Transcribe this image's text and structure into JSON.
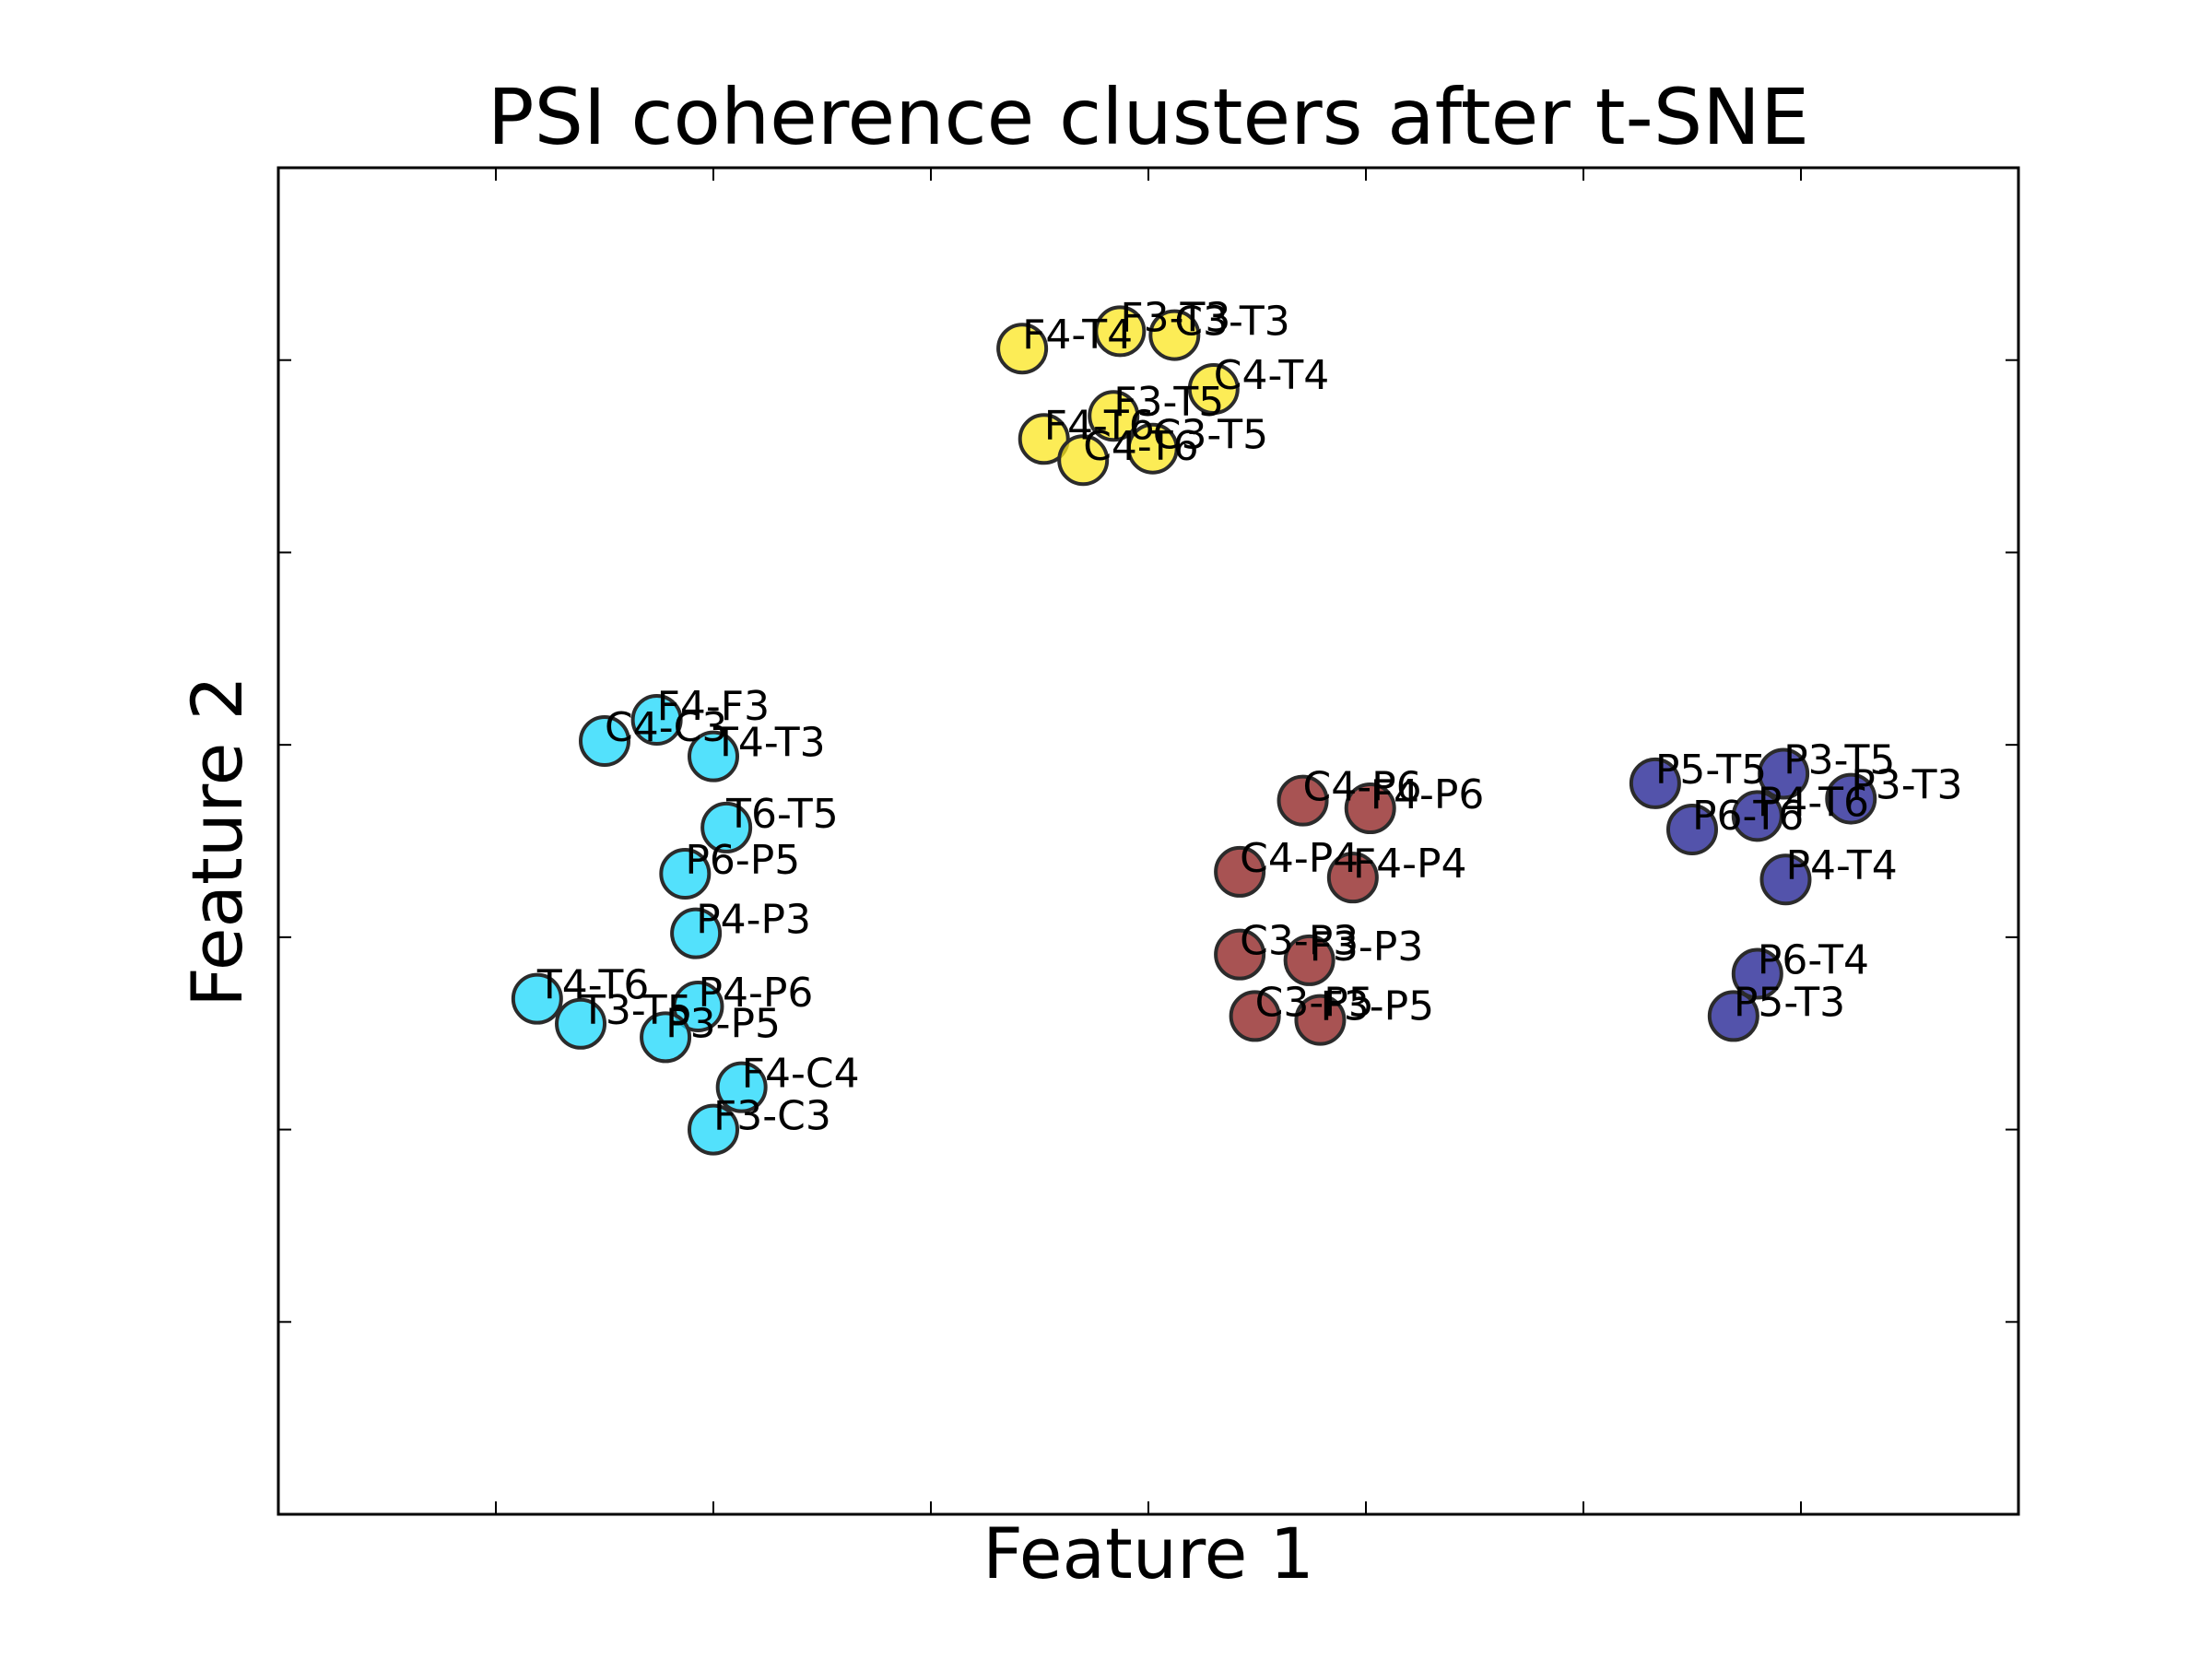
{
  "chart_data": {
    "type": "scatter",
    "title": "PSI coherence clusters after t-SNE",
    "xlabel": "Feature 1",
    "ylabel": "Feature 2",
    "xlim": [
      -4,
      4
    ],
    "ylim": [
      -3.5,
      3.5
    ],
    "x_ticks": [
      -3,
      -2,
      -1,
      0,
      1,
      2,
      3
    ],
    "y_ticks": [
      -2.5,
      -1.5,
      -0.5,
      0.5,
      1.5,
      2.5
    ],
    "tick_labels_shown": false,
    "grid": false,
    "legend": "none",
    "colors": {
      "cluster_yellow": "#fbe51e",
      "cluster_cyan": "#1ad7fb",
      "cluster_red": "#8b1a1a",
      "cluster_blue": "#1a1a8f"
    },
    "points": [
      {
        "label": "F3-T3",
        "x": -0.13,
        "y": 2.65,
        "cluster": "cluster_yellow"
      },
      {
        "label": "C3-T3",
        "x": 0.12,
        "y": 2.63,
        "cluster": "cluster_yellow"
      },
      {
        "label": "F4-T4",
        "x": -0.58,
        "y": 2.56,
        "cluster": "cluster_yellow"
      },
      {
        "label": "C4-T4",
        "x": 0.3,
        "y": 2.35,
        "cluster": "cluster_yellow"
      },
      {
        "label": "F3-T5",
        "x": -0.16,
        "y": 2.21,
        "cluster": "cluster_yellow"
      },
      {
        "label": "F4-T6",
        "x": -0.48,
        "y": 2.09,
        "cluster": "cluster_yellow"
      },
      {
        "label": "C3-T5",
        "x": 0.02,
        "y": 2.04,
        "cluster": "cluster_yellow"
      },
      {
        "label": "C4-T6",
        "x": -0.3,
        "y": 1.98,
        "cluster": "cluster_yellow"
      },
      {
        "label": "F4-F3",
        "x": -2.26,
        "y": 0.63,
        "cluster": "cluster_cyan"
      },
      {
        "label": "C4-C3",
        "x": -2.5,
        "y": 0.52,
        "cluster": "cluster_cyan"
      },
      {
        "label": "T4-T3",
        "x": -2.0,
        "y": 0.44,
        "cluster": "cluster_cyan"
      },
      {
        "label": "T6-T5",
        "x": -1.94,
        "y": 0.07,
        "cluster": "cluster_cyan"
      },
      {
        "label": "P6-P5",
        "x": -2.13,
        "y": -0.17,
        "cluster": "cluster_cyan"
      },
      {
        "label": "P4-P3",
        "x": -2.08,
        "y": -0.48,
        "cluster": "cluster_cyan"
      },
      {
        "label": "T4-T6",
        "x": -2.81,
        "y": -0.82,
        "cluster": "cluster_cyan"
      },
      {
        "label": "P4-P6",
        "x": -2.07,
        "y": -0.86,
        "cluster": "cluster_cyan"
      },
      {
        "label": "T3-T5",
        "x": -2.61,
        "y": -0.95,
        "cluster": "cluster_cyan"
      },
      {
        "label": "P3-P5",
        "x": -2.22,
        "y": -1.02,
        "cluster": "cluster_cyan"
      },
      {
        "label": "F4-C4",
        "x": -1.87,
        "y": -1.28,
        "cluster": "cluster_cyan"
      },
      {
        "label": "F3-C3",
        "x": -2.0,
        "y": -1.5,
        "cluster": "cluster_cyan"
      },
      {
        "label": "C4-P6",
        "x": 0.71,
        "y": 0.21,
        "cluster": "cluster_red"
      },
      {
        "label": "F4-P6",
        "x": 1.02,
        "y": 0.17,
        "cluster": "cluster_red"
      },
      {
        "label": "C4-P4",
        "x": 0.42,
        "y": -0.16,
        "cluster": "cluster_red"
      },
      {
        "label": "F4-P4",
        "x": 0.94,
        "y": -0.19,
        "cluster": "cluster_red"
      },
      {
        "label": "C3-P3",
        "x": 0.42,
        "y": -0.59,
        "cluster": "cluster_red"
      },
      {
        "label": "F3-P3",
        "x": 0.74,
        "y": -0.62,
        "cluster": "cluster_red"
      },
      {
        "label": "C3-P5",
        "x": 0.49,
        "y": -0.91,
        "cluster": "cluster_red"
      },
      {
        "label": "F3-P5",
        "x": 0.79,
        "y": -0.93,
        "cluster": "cluster_red"
      },
      {
        "label": "P5-T5",
        "x": 2.33,
        "y": 0.3,
        "cluster": "cluster_blue"
      },
      {
        "label": "P3-T5",
        "x": 2.92,
        "y": 0.35,
        "cluster": "cluster_blue"
      },
      {
        "label": "P3-T3",
        "x": 3.23,
        "y": 0.22,
        "cluster": "cluster_blue"
      },
      {
        "label": "P4-T6",
        "x": 2.8,
        "y": 0.13,
        "cluster": "cluster_blue"
      },
      {
        "label": "P6-T6",
        "x": 2.5,
        "y": 0.06,
        "cluster": "cluster_blue"
      },
      {
        "label": "P4-T4",
        "x": 2.93,
        "y": -0.2,
        "cluster": "cluster_blue"
      },
      {
        "label": "P6-T4",
        "x": 2.8,
        "y": -0.69,
        "cluster": "cluster_blue"
      },
      {
        "label": "P5-T3",
        "x": 2.69,
        "y": -0.91,
        "cluster": "cluster_blue"
      }
    ]
  }
}
